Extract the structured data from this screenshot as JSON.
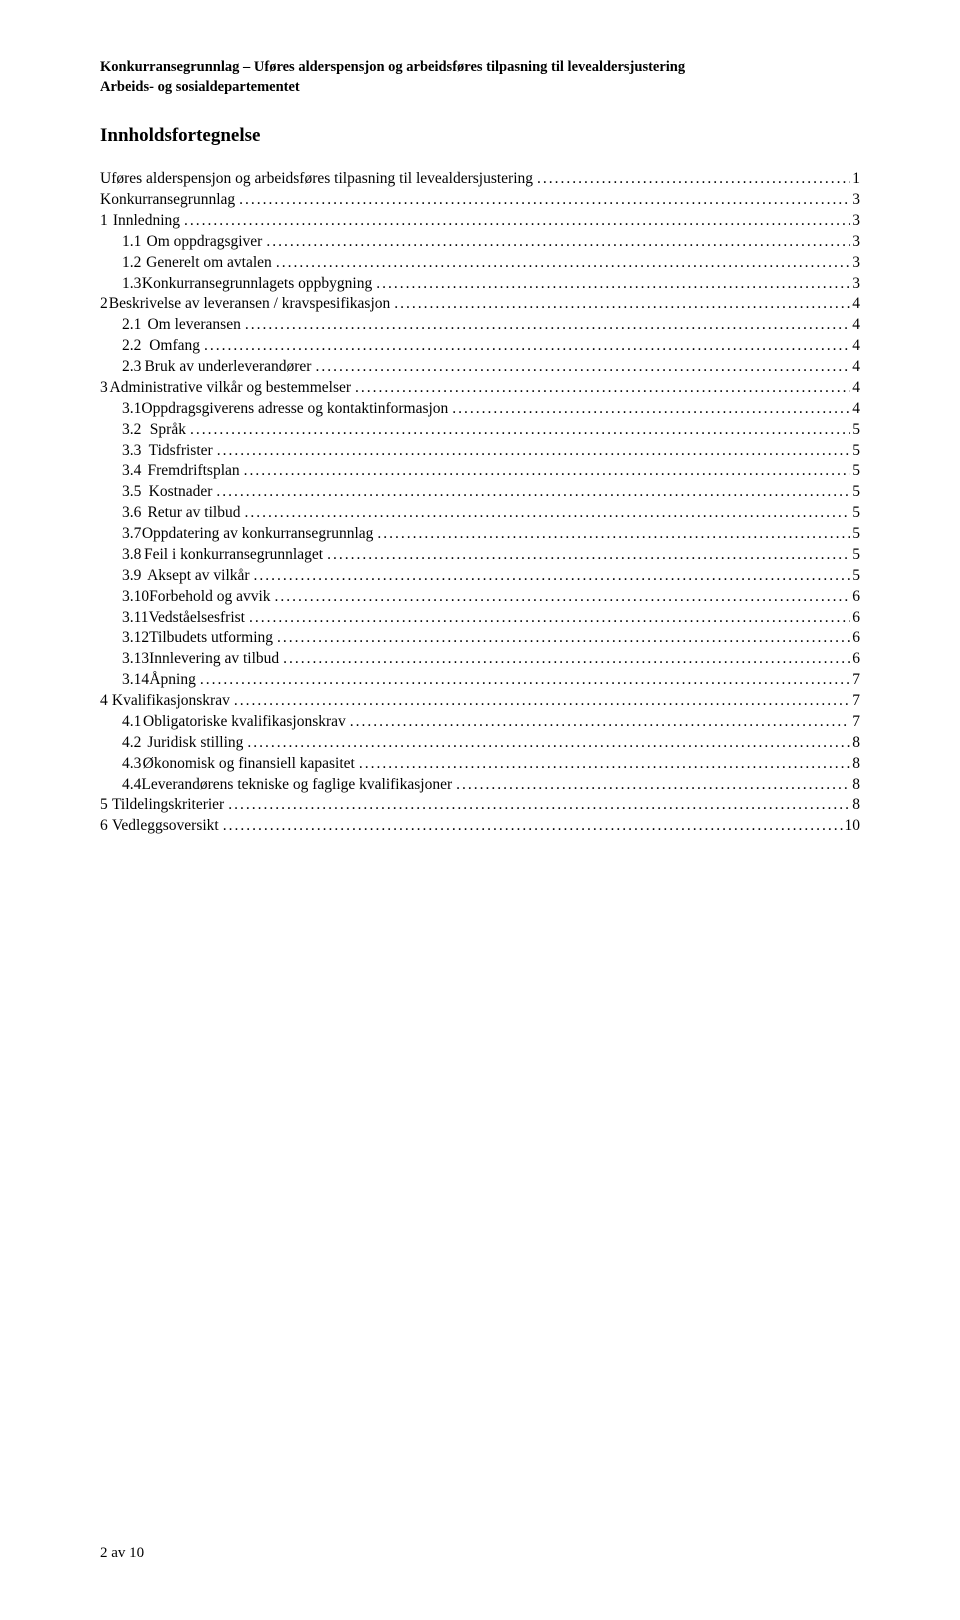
{
  "header": {
    "line1": "Konkurransegrunnlag – Uføres alderspensjon og arbeidsføres tilpasning til levealdersjustering",
    "line2": "Arbeids- og sosialdepartementet"
  },
  "toc_title": "Innholdsfortegnelse",
  "toc": [
    {
      "depth": 0,
      "num": "",
      "text": "Uføres alderspensjon og arbeidsføres tilpasning til levealdersjustering",
      "page": "1"
    },
    {
      "depth": 0,
      "num": "",
      "text": "Konkurransegrunnlag",
      "page": "3"
    },
    {
      "depth": 0,
      "num": "1",
      "text": "Innledning",
      "page": "3"
    },
    {
      "depth": 1,
      "num": "1.1",
      "text": "Om oppdragsgiver",
      "page": "3"
    },
    {
      "depth": 1,
      "num": "1.2",
      "text": "Generelt om avtalen",
      "page": "3"
    },
    {
      "depth": 1,
      "num": "1.3",
      "text": "Konkurransegrunnlagets oppbygning",
      "page": "3"
    },
    {
      "depth": 0,
      "num": "2",
      "text": "Beskrivelse av leveransen / kravspesifikasjon",
      "page": "4"
    },
    {
      "depth": 1,
      "num": "2.1",
      "text": "Om leveransen",
      "page": "4"
    },
    {
      "depth": 1,
      "num": "2.2",
      "text": "Omfang",
      "page": "4"
    },
    {
      "depth": 1,
      "num": "2.3",
      "text": "Bruk av underleverandører",
      "page": "4"
    },
    {
      "depth": 0,
      "num": "3",
      "text": "Administrative vilkår og bestemmelser",
      "page": "4"
    },
    {
      "depth": 1,
      "num": "3.1",
      "text": "Oppdragsgiverens adresse og kontaktinformasjon",
      "page": "4"
    },
    {
      "depth": 1,
      "num": "3.2",
      "text": "Språk",
      "page": "5"
    },
    {
      "depth": 1,
      "num": "3.3",
      "text": "Tidsfrister",
      "page": "5"
    },
    {
      "depth": 1,
      "num": "3.4",
      "text": "Fremdriftsplan",
      "page": "5"
    },
    {
      "depth": 1,
      "num": "3.5",
      "text": "Kostnader",
      "page": "5"
    },
    {
      "depth": 1,
      "num": "3.6",
      "text": "Retur av tilbud",
      "page": "5"
    },
    {
      "depth": 1,
      "num": "3.7",
      "text": "Oppdatering av konkurransegrunnlag",
      "page": "5"
    },
    {
      "depth": 1,
      "num": "3.8",
      "text": "Feil i konkurransegrunnlaget",
      "page": "5"
    },
    {
      "depth": 1,
      "num": "3.9",
      "text": "Aksept av vilkår",
      "page": "5"
    },
    {
      "depth": 1,
      "num": "3.10",
      "text": "Forbehold og avvik",
      "page": "6"
    },
    {
      "depth": 1,
      "num": "3.11",
      "text": "Vedståelsesfrist",
      "page": "6"
    },
    {
      "depth": 1,
      "num": "3.12",
      "text": "Tilbudets utforming",
      "page": "6"
    },
    {
      "depth": 1,
      "num": "3.13",
      "text": "Innlevering av tilbud",
      "page": "6"
    },
    {
      "depth": 1,
      "num": "3.14",
      "text": "Åpning",
      "page": "7"
    },
    {
      "depth": 0,
      "num": "4",
      "text": "Kvalifikasjonskrav",
      "page": "7"
    },
    {
      "depth": 1,
      "num": "4.1",
      "text": "Obligatoriske kvalifikasjonskrav",
      "page": "7"
    },
    {
      "depth": 1,
      "num": "4.2",
      "text": "Juridisk stilling",
      "page": "8"
    },
    {
      "depth": 1,
      "num": "4.3",
      "text": "Økonomisk og finansiell kapasitet",
      "page": "8"
    },
    {
      "depth": 1,
      "num": "4.4",
      "text": "Leverandørens tekniske og faglige kvalifikasjoner",
      "page": "8"
    },
    {
      "depth": 0,
      "num": "5",
      "text": "Tildelingskriterier",
      "page": "8"
    },
    {
      "depth": 0,
      "num": "6",
      "text": "Vedleggsoversikt",
      "page": "10"
    }
  ],
  "footer": "2 av 10"
}
